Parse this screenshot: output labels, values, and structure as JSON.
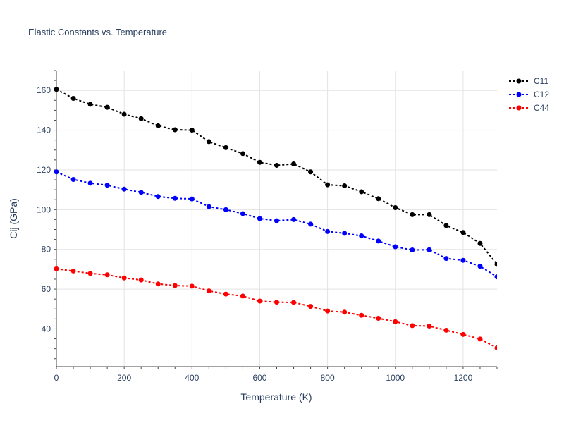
{
  "chart_data": {
    "type": "line",
    "title": "Elastic Constants vs. Temperature",
    "xlabel": "Temperature (K)",
    "ylabel": "Cij (GPa)",
    "xlim": [
      0,
      1300
    ],
    "ylim": [
      21,
      170
    ],
    "xticks": [
      0,
      200,
      400,
      600,
      800,
      1000,
      1200
    ],
    "yticks": [
      40,
      60,
      80,
      100,
      120,
      140,
      160
    ],
    "grid": true,
    "legend_position": "top-right",
    "x": [
      0,
      50,
      100,
      150,
      200,
      250,
      300,
      350,
      400,
      450,
      500,
      550,
      600,
      650,
      700,
      750,
      800,
      850,
      900,
      950,
      1000,
      1050,
      1100,
      1150,
      1200,
      1250,
      1300
    ],
    "series": [
      {
        "name": "C11",
        "color": "#000000",
        "values": [
          160.5,
          156,
          153,
          151.5,
          148,
          145.8,
          142.2,
          140.2,
          140,
          134.2,
          131.2,
          128.2,
          123.8,
          122.3,
          123,
          119,
          112.5,
          112,
          109,
          105.5,
          101,
          97.5,
          97.5,
          92,
          88.5,
          83,
          72.5
        ]
      },
      {
        "name": "C12",
        "color": "#0000ff",
        "values": [
          119,
          115.2,
          113.3,
          112.3,
          110.3,
          108.7,
          106.6,
          105.7,
          105.4,
          101.5,
          100,
          98,
          95.5,
          94.4,
          95,
          92.7,
          89,
          88.1,
          86.8,
          84.2,
          81.3,
          79.7,
          79.8,
          75.4,
          74.5,
          71.5,
          66.2
        ]
      },
      {
        "name": "C44",
        "color": "#ff0000",
        "values": [
          70.2,
          69.1,
          67.9,
          67.2,
          65.6,
          64.6,
          62.6,
          61.8,
          61.5,
          59.1,
          57.5,
          56.5,
          54,
          53.4,
          53.3,
          51.3,
          49,
          48.4,
          46.8,
          45.3,
          43.6,
          41.6,
          41.4,
          39.3,
          37.2,
          34.9,
          30.4
        ]
      }
    ]
  }
}
